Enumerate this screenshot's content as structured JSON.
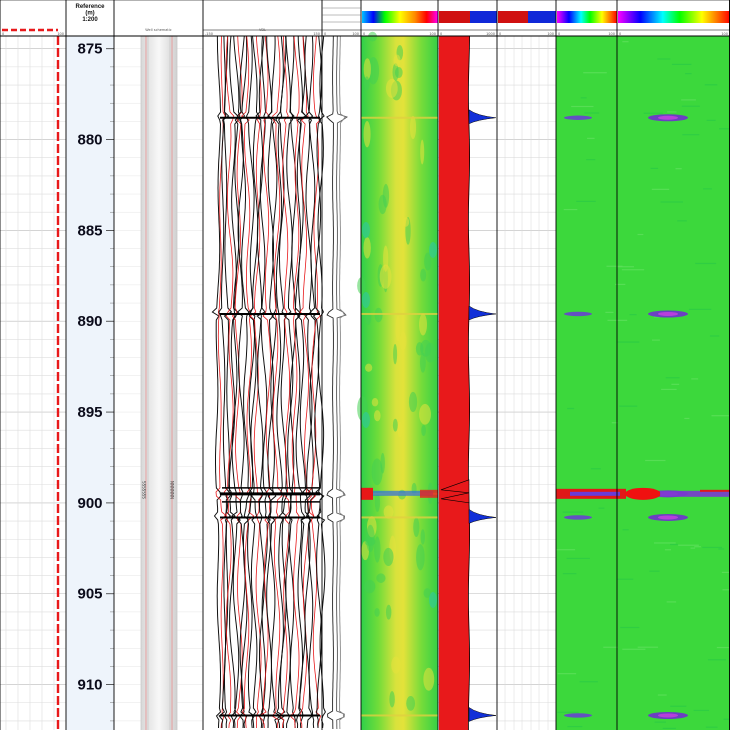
{
  "chart_data": {
    "type": "well-log",
    "reference_header": [
      "Reference",
      "(m)",
      "1:200"
    ],
    "depth_range": [
      874.3,
      912.5
    ],
    "depth_ticks": [
      875,
      880,
      885,
      890,
      895,
      900,
      905,
      910
    ],
    "anomaly_depths": [
      878.8,
      889.6,
      899.5,
      900.8,
      911.7
    ],
    "scale_values": [
      "0",
      "100",
      "-150",
      "150",
      "0",
      "0",
      "100",
      "0",
      "1000",
      "0",
      "100"
    ],
    "tracks": [
      {
        "id": "curve-track",
        "header": "",
        "scale_values": [
          "0",
          "100"
        ]
      },
      {
        "id": "reference-track"
      },
      {
        "id": "well-schematic",
        "header": "Well schematic",
        "labels": [
          "SSSSSSS",
          "NNNNNN"
        ]
      },
      {
        "id": "variable-density",
        "header": "VDL",
        "scale_values": [
          "-150",
          "150"
        ]
      },
      {
        "id": "amplitude",
        "header": "",
        "scale_values": [
          "0",
          "100"
        ]
      },
      {
        "id": "cement-map",
        "header": "",
        "scale_values": [
          "0",
          "100"
        ]
      },
      {
        "id": "bond-index",
        "header": "",
        "scale_values": [
          "0",
          "1000"
        ]
      },
      {
        "id": "empty-track",
        "header": "",
        "scale_values": [
          "0",
          "100"
        ]
      },
      {
        "id": "image-a",
        "header": "",
        "scale_values": [
          "0",
          "100"
        ]
      },
      {
        "id": "image-b",
        "header": "",
        "scale_values": [
          "0",
          "100"
        ]
      }
    ],
    "colors": {
      "red_curve": "#e8191b",
      "blue_peak": "#1230d8",
      "map_green": "#3ed43e",
      "map_yellow": "#e0e43a",
      "map_red": "#f01010",
      "depth_bg": "#eef4fb"
    }
  }
}
